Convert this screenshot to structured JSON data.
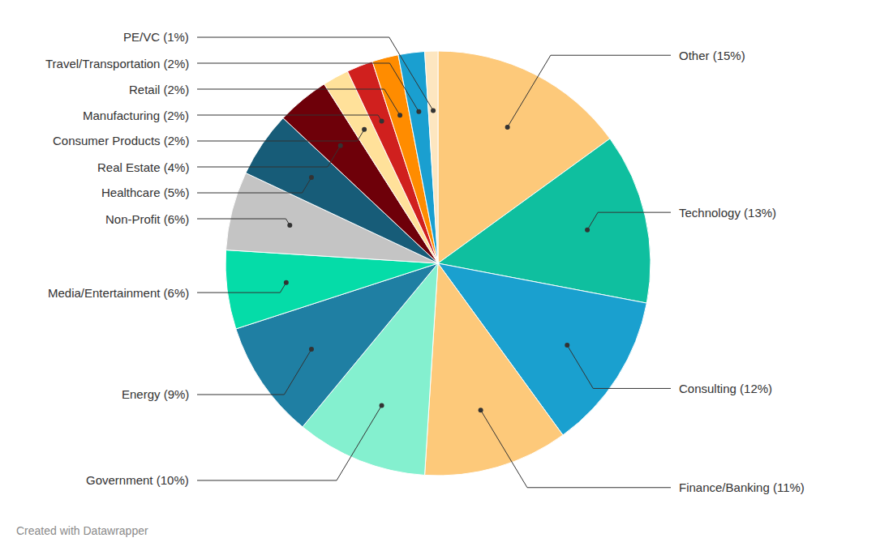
{
  "chart_data": {
    "type": "pie",
    "categories": [
      "Other",
      "Technology",
      "Consulting",
      "Finance/Banking",
      "Government",
      "Energy",
      "Media/Entertainment",
      "Non-Profit",
      "Healthcare",
      "Real Estate",
      "Consumer Products",
      "Manufacturing",
      "Retail",
      "Travel/Transportation",
      "PE/VC"
    ],
    "values": [
      15,
      13,
      12,
      11,
      10,
      9,
      6,
      6,
      5,
      4,
      2,
      2,
      2,
      2,
      1
    ],
    "value_labels": [
      "Other (15%)",
      "Technology (13%)",
      "Consulting (12%)",
      "Finance/Banking (11%)",
      "Government (10%)",
      "Energy (9%)",
      "Media/Entertainment (6%)",
      "Non-Profit (6%)",
      "Healthcare (5%)",
      "Real Estate (4%)",
      "Consumer Products (2%)",
      "Manufacturing (2%)",
      "Retail (2%)",
      "Travel/Transportation (2%)",
      "PE/VC (1%)"
    ],
    "colors": [
      "#fdc97a",
      "#0fbf9f",
      "#1aa0cf",
      "#fdc97a",
      "#84f0cf",
      "#1f7fa3",
      "#05dca8",
      "#c4c4c4",
      "#175c78",
      "#6e0009",
      "#ffe19a",
      "#d0201e",
      "#ff8c00",
      "#1a9fd0",
      "#fde6c0"
    ],
    "caption": "Created with Datawrapper"
  }
}
